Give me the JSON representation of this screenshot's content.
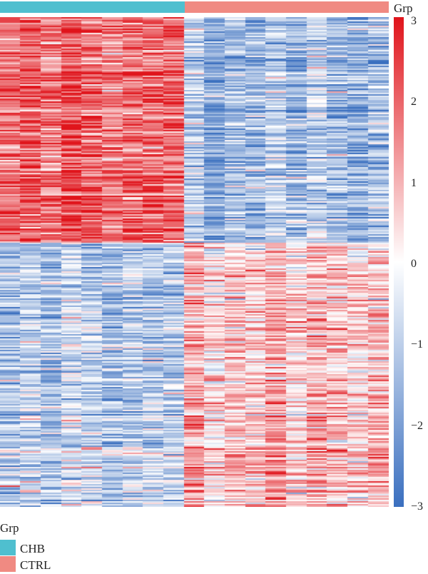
{
  "chart_data": {
    "type": "heatmap",
    "title": "",
    "groups": [
      {
        "name": "CHB",
        "color": "#4fbfcf",
        "columns": 9
      },
      {
        "name": "CTRL",
        "color": "#f08a82",
        "columns": 10
      }
    ],
    "annotation_label": "Grp",
    "legend_title": "Grp",
    "colorscale": {
      "min": -3,
      "mid": 0,
      "max": 3,
      "low": "#3a6fbf",
      "mid_color": "#ffffff",
      "high": "#e0141b"
    },
    "colorbar_ticks": [
      "3",
      "2",
      "1",
      "0",
      "−1",
      "−2",
      "−3"
    ],
    "colorbar_tick_values": [
      3,
      2,
      1,
      0,
      -1,
      -2,
      -3
    ],
    "row_blocks": [
      {
        "description": "upregulated in CHB",
        "fraction_of_rows": 0.46,
        "CHB_mean": 1.8,
        "CTRL_mean": -1.1
      },
      {
        "description": "downregulated in CHB",
        "fraction_of_rows": 0.54,
        "CHB_mean": -1.2,
        "CTRL_mean": 1.0
      }
    ]
  }
}
